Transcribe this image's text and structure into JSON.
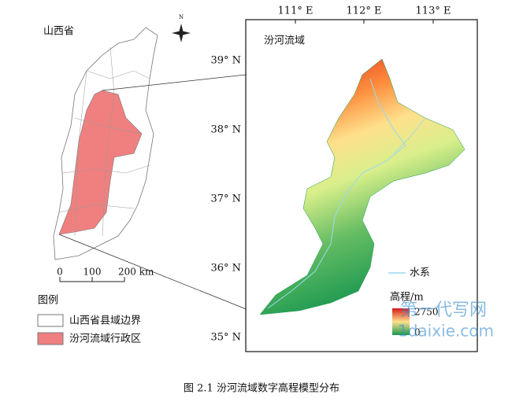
{
  "province_map": {
    "title": "山西省",
    "scale": [
      "0",
      "100",
      "200 km"
    ],
    "north": "N"
  },
  "legend": {
    "title": "图例",
    "items": [
      "山西省县域边界",
      "汾河流域行政区"
    ]
  },
  "basin_map": {
    "title": "汾河流域",
    "lon_labels": [
      "111° E",
      "112° E",
      "113° E"
    ],
    "lat_labels": [
      "39° N",
      "38° N",
      "37° N",
      "36° N",
      "35° N"
    ],
    "river_legend": "水系",
    "elevation_title": "高程/m",
    "elevation_max": "2750",
    "elevation_min": "0"
  },
  "watermark": [
    "第一代写网",
    "1daixie.com"
  ],
  "caption": "图 2.1 汾河流域数字高程模型分布"
}
